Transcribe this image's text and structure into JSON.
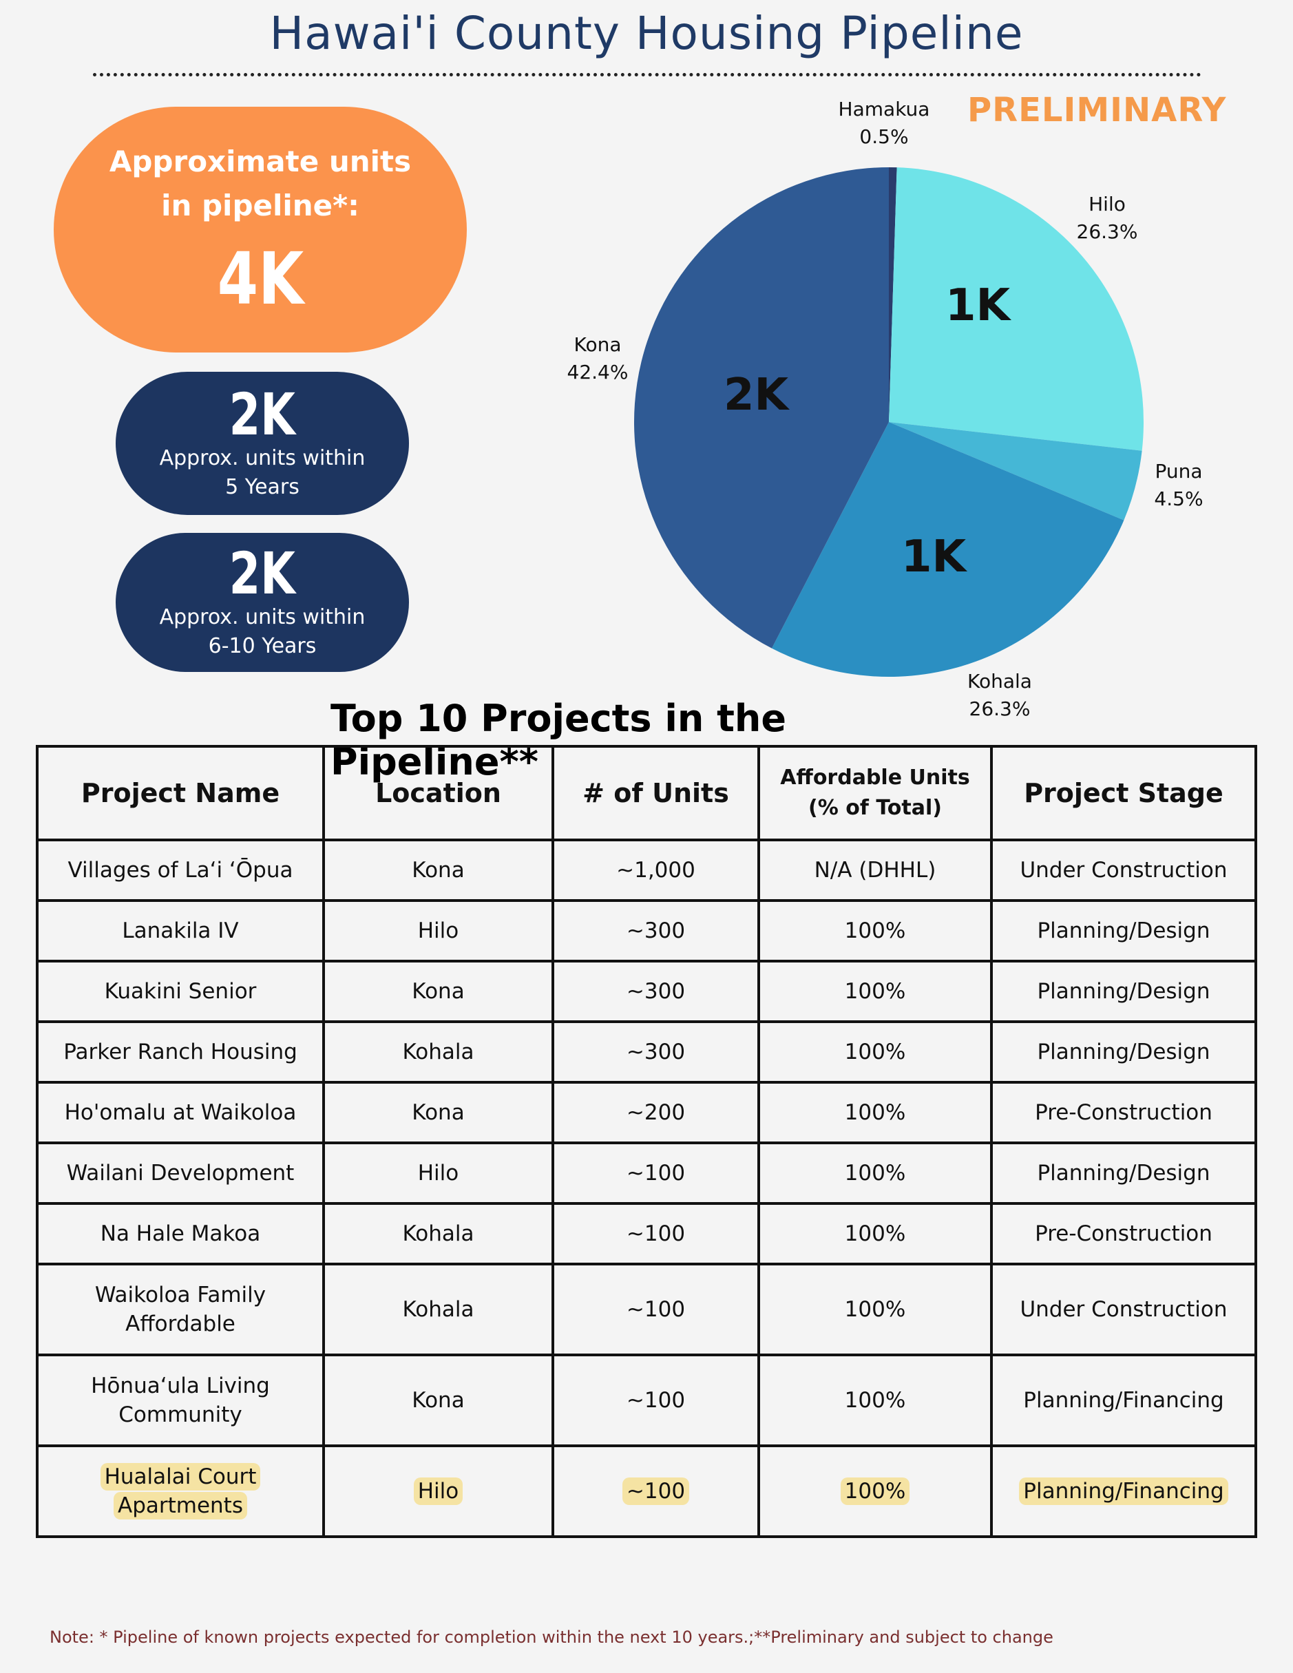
{
  "title": "Hawai'i County Housing Pipeline",
  "badge": "PRELIMINARY",
  "summary": {
    "total_label_line1": "Approximate units",
    "total_label_line2": "in pipeline*:",
    "total_value": "4K",
    "five_year_value": "2K",
    "five_year_label_line1": "Approx. units within",
    "five_year_label_line2": "5 Years",
    "ten_year_value": "2K",
    "ten_year_label_line1": "Approx. units within",
    "ten_year_label_line2": "6-10 Years"
  },
  "chart_data": {
    "type": "pie",
    "slices": [
      {
        "label": "Hamakua",
        "percent": "0.5%",
        "value": 0.5,
        "color": "#2a3c6c",
        "inner_label": ""
      },
      {
        "label": "Hilo",
        "percent": "26.3%",
        "value": 26.3,
        "color": "#6fe3e8",
        "inner_label": "1K"
      },
      {
        "label": "Puna",
        "percent": "4.5%",
        "value": 4.5,
        "color": "#45b7d6",
        "inner_label": ""
      },
      {
        "label": "Kohala",
        "percent": "26.3%",
        "value": 26.3,
        "color": "#2b8fc2",
        "inner_label": "1K"
      },
      {
        "label": "Kona",
        "percent": "42.4%",
        "value": 42.4,
        "color": "#2f5a94",
        "inner_label": "2K"
      }
    ]
  },
  "table": {
    "title": "Top 10 Projects in the Pipeline**",
    "headers": {
      "name": "Project Name",
      "location": "Location",
      "units": "# of Units",
      "affordable_line1": "Affordable Units",
      "affordable_line2": "(% of Total)",
      "stage": "Project Stage"
    },
    "rows": [
      {
        "name": "Villages of Laʻi ʻŌpua",
        "name2": "",
        "location": "Kona",
        "units": "~1,000",
        "affordable": "N/A (DHHL)",
        "stage": "Under Construction"
      },
      {
        "name": "Lanakila IV",
        "name2": "",
        "location": "Hilo",
        "units": "~300",
        "affordable": "100%",
        "stage": "Planning/Design"
      },
      {
        "name": "Kuakini Senior",
        "name2": "",
        "location": "Kona",
        "units": "~300",
        "affordable": "100%",
        "stage": "Planning/Design"
      },
      {
        "name": "Parker Ranch Housing",
        "name2": "",
        "location": "Kohala",
        "units": "~300",
        "affordable": "100%",
        "stage": "Planning/Design"
      },
      {
        "name": "Ho'omalu at Waikoloa",
        "name2": "",
        "location": "Kona",
        "units": "~200",
        "affordable": "100%",
        "stage": "Pre-Construction"
      },
      {
        "name": "Wailani Development",
        "name2": "",
        "location": "Hilo",
        "units": "~100",
        "affordable": "100%",
        "stage": "Planning/Design"
      },
      {
        "name": "Na Hale Makoa",
        "name2": "",
        "location": "Kohala",
        "units": "~100",
        "affordable": "100%",
        "stage": "Pre-Construction"
      },
      {
        "name": "Waikoloa Family",
        "name2": "Affordable",
        "location": "Kohala",
        "units": "~100",
        "affordable": "100%",
        "stage": "Under Construction"
      },
      {
        "name": "Hōnuaʻula Living",
        "name2": "Community",
        "location": "Kona",
        "units": "~100",
        "affordable": "100%",
        "stage": "Planning/Financing"
      },
      {
        "name": "Hualalai Court",
        "name2": "Apartments",
        "location": "Hilo",
        "units": "~100",
        "affordable": "100%",
        "stage": "Planning/Financing"
      }
    ]
  },
  "note": "Note: * Pipeline of known projects expected for completion within the next 10 years.;**Preliminary and subject to change"
}
